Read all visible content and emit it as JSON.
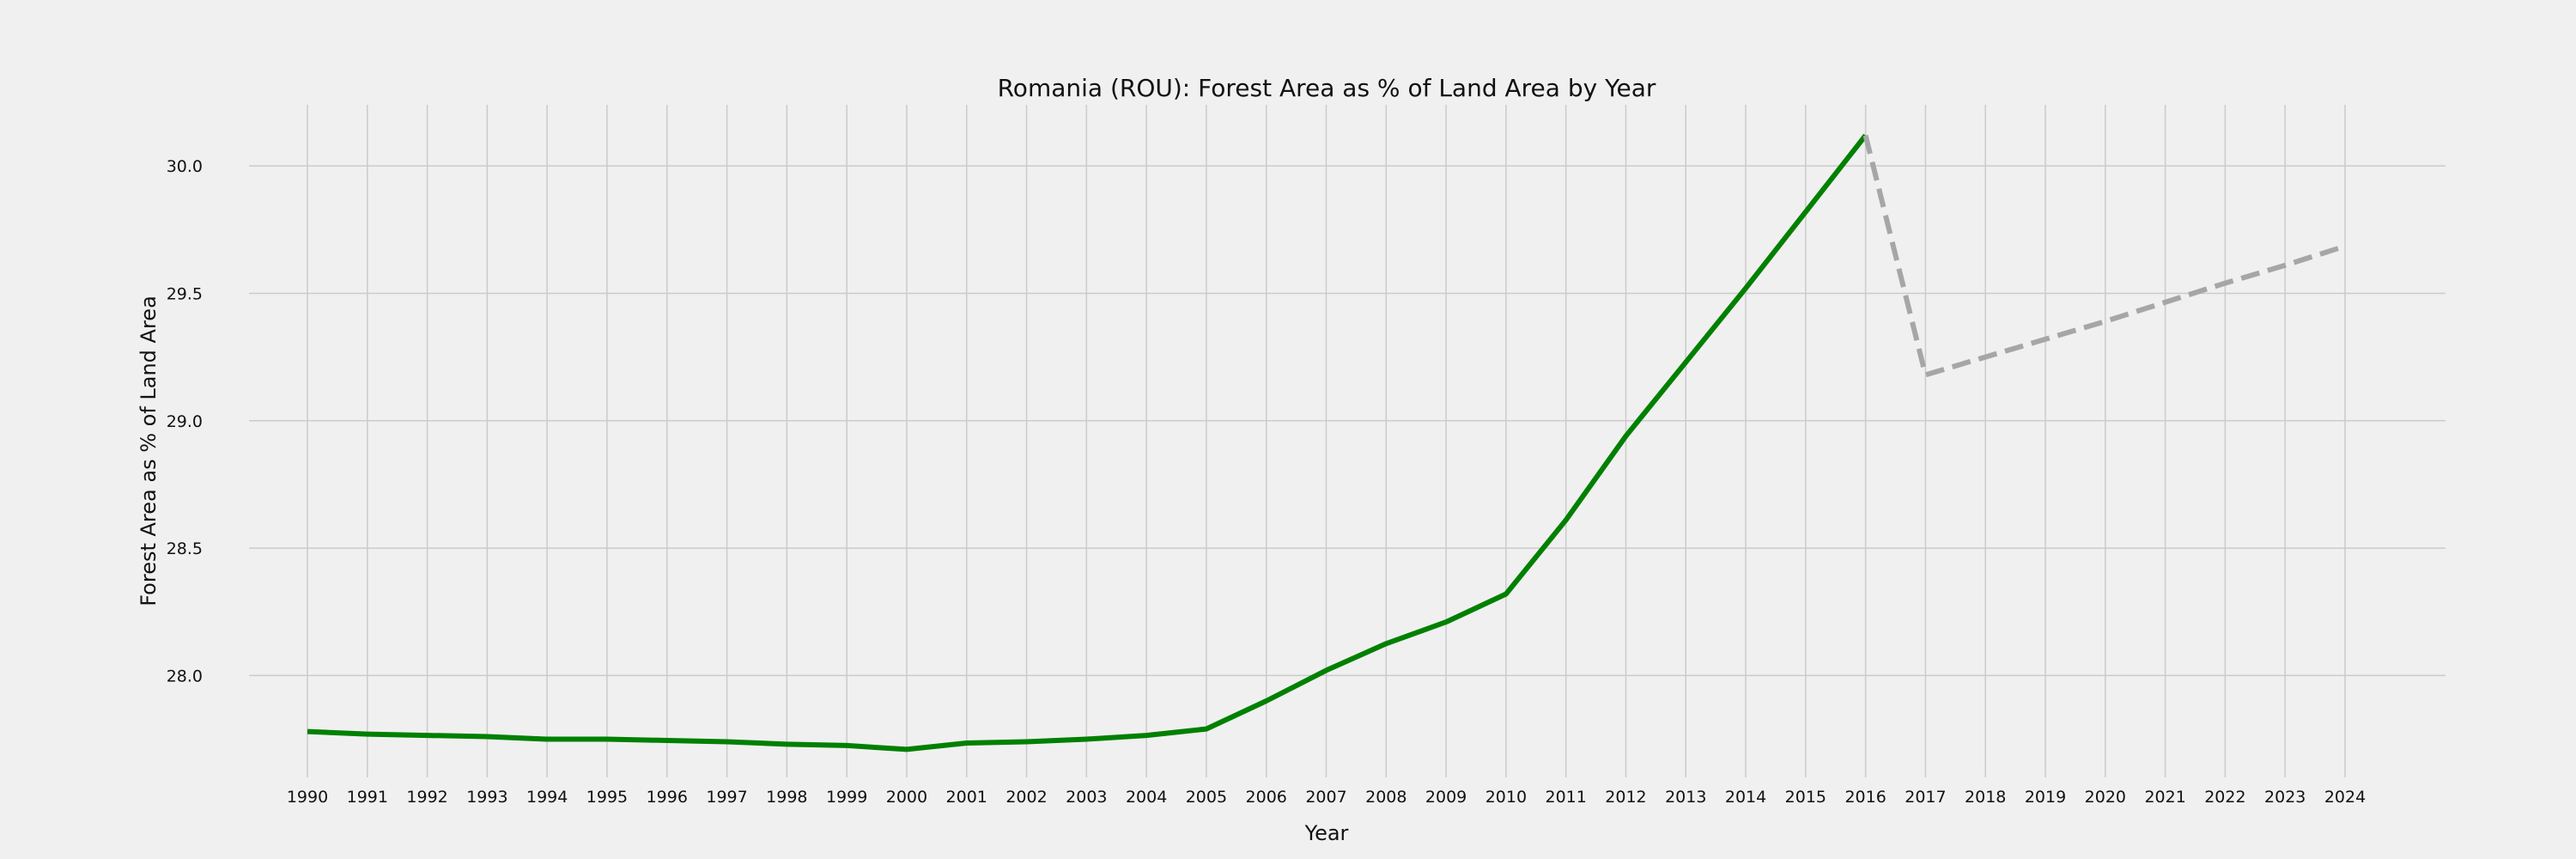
{
  "chart_data": {
    "type": "line",
    "title": "Romania (ROU): Forest Area as % of Land Area by Year",
    "xlabel": "Year",
    "ylabel": "Forest Area as % of Land Area",
    "x": [
      1990,
      1991,
      1992,
      1993,
      1994,
      1995,
      1996,
      1997,
      1998,
      1999,
      2000,
      2001,
      2002,
      2003,
      2004,
      2005,
      2006,
      2007,
      2008,
      2009,
      2010,
      2011,
      2012,
      2013,
      2014,
      2015,
      2016,
      2017,
      2018,
      2019,
      2020,
      2021,
      2022,
      2023,
      2024
    ],
    "ylim": [
      27.6,
      30.24
    ],
    "yticks": [
      "28.0",
      "28.5",
      "29.0",
      "29.5",
      "30.0"
    ],
    "grid": true,
    "series": [
      {
        "style": "solid",
        "color": "#008000",
        "x": [
          1990,
          1991,
          1992,
          1993,
          1994,
          1995,
          1996,
          1997,
          1998,
          1999,
          2000,
          2001,
          2002,
          2003,
          2004,
          2005,
          2006,
          2007,
          2008,
          2009,
          2010,
          2011,
          2012,
          2013,
          2014,
          2015,
          2016
        ],
        "values": [
          27.78,
          27.77,
          27.765,
          27.76,
          27.75,
          27.75,
          27.745,
          27.74,
          27.73,
          27.725,
          27.71,
          27.735,
          27.74,
          27.75,
          27.765,
          27.79,
          27.9,
          28.02,
          28.125,
          28.21,
          28.32,
          28.61,
          28.94,
          29.23,
          29.52,
          29.82,
          30.12
        ]
      },
      {
        "style": "dashed",
        "color": "#a6a6a6",
        "x": [
          2016,
          2017,
          2018,
          2019,
          2020,
          2021,
          2022,
          2023,
          2024
        ],
        "values": [
          30.12,
          29.18,
          29.25,
          29.32,
          29.39,
          29.465,
          29.54,
          29.61,
          29.685
        ]
      }
    ]
  }
}
